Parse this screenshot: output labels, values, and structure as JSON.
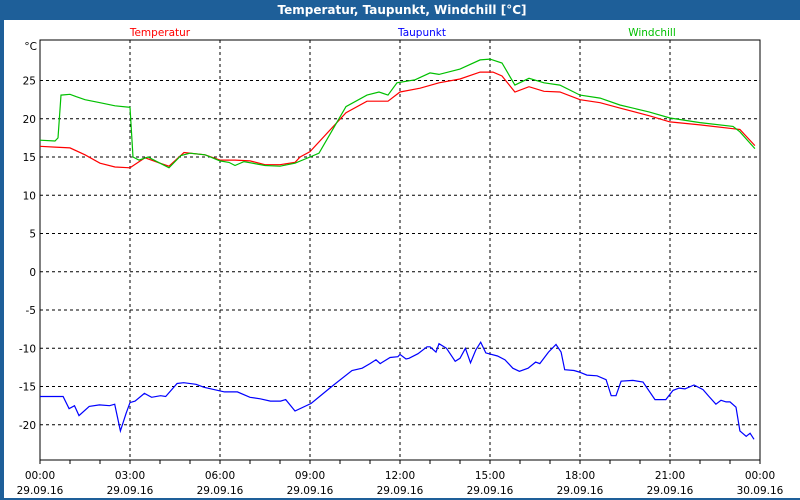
{
  "window": {
    "title": "Temperatur, Taupunkt, Windchill [°C]"
  },
  "chart_data": {
    "type": "line",
    "title": "Temperatur, Taupunkt, Windchill [°C]",
    "ylabel": "°C",
    "xlabel": "",
    "ylim": [
      -24.6,
      30.3
    ],
    "xlim_hours": [
      0,
      24
    ],
    "grid": true,
    "legend_placement": "top",
    "y_ticks": [
      25,
      20,
      15,
      10,
      5,
      0,
      -5,
      -10,
      -15,
      -20
    ],
    "x_ticks": [
      {
        "hour": 0,
        "time": "00:00",
        "date": "29.09.16"
      },
      {
        "hour": 3,
        "time": "03:00",
        "date": "29.09.16"
      },
      {
        "hour": 6,
        "time": "06:00",
        "date": "29.09.16"
      },
      {
        "hour": 9,
        "time": "09:00",
        "date": "29.09.16"
      },
      {
        "hour": 12,
        "time": "12:00",
        "date": "29.09.16"
      },
      {
        "hour": 15,
        "time": "15:00",
        "date": "29.09.16"
      },
      {
        "hour": 18,
        "time": "18:00",
        "date": "29.09.16"
      },
      {
        "hour": 21,
        "time": "21:00",
        "date": "29.09.16"
      },
      {
        "hour": 24,
        "time": "00:00",
        "date": "30.09.16"
      }
    ],
    "series": [
      {
        "name": "Temperatur",
        "color": "#ff0000",
        "x": [
          0,
          0.5,
          1,
          1.5,
          2,
          2.5,
          3,
          3.5,
          4,
          4.3,
          4.8,
          5.5,
          6,
          6.5,
          7,
          7.5,
          8,
          8.5,
          8.67,
          9,
          10.2,
          10.9,
          11.6,
          12,
          12.67,
          13.3,
          14,
          14.67,
          15.1,
          15.4,
          15.83,
          16.3,
          16.8,
          17.33,
          18,
          18.67,
          19.33,
          20.3,
          21,
          22,
          23.1,
          23.33,
          23.83
        ],
        "y": [
          16.4,
          16.3,
          16.2,
          15.3,
          14.2,
          13.7,
          13.6,
          14.9,
          14.2,
          13.8,
          15.6,
          15.3,
          14.6,
          14.6,
          14.5,
          14.0,
          14.0,
          14.3,
          15.0,
          15.7,
          20.8,
          22.3,
          22.3,
          23.5,
          24.0,
          24.7,
          25.2,
          26.1,
          26.1,
          25.6,
          23.5,
          24.2,
          23.6,
          23.5,
          22.5,
          22.1,
          21.4,
          20.4,
          19.6,
          19.2,
          18.7,
          18.6,
          16.5
        ]
      },
      {
        "name": "Taupunkt",
        "color": "#0000ff",
        "x": [
          0,
          0.77,
          0.97,
          1.15,
          1.3,
          1.64,
          1.98,
          2.32,
          2.49,
          2.68,
          2.87,
          3.0,
          3.17,
          3.48,
          3.72,
          4.02,
          4.19,
          4.57,
          4.79,
          5.2,
          5.47,
          6.15,
          6.58,
          7.0,
          7.34,
          7.68,
          8.02,
          8.19,
          8.5,
          9.04,
          9.72,
          10.4,
          10.74,
          11.0,
          11.2,
          11.34,
          11.67,
          11.93,
          12.0,
          12.2,
          12.3,
          12.6,
          12.9,
          13.0,
          13.2,
          13.3,
          13.55,
          13.84,
          14.0,
          14.18,
          14.35,
          14.53,
          14.69,
          14.86,
          15.25,
          15.5,
          15.76,
          15.98,
          16.27,
          16.52,
          16.66,
          16.95,
          17.2,
          17.37,
          17.49,
          17.8,
          17.97,
          18.23,
          18.57,
          18.87,
          19.04,
          19.2,
          19.37,
          19.76,
          20.1,
          20.5,
          20.86,
          21.1,
          21.3,
          21.5,
          21.8,
          22.1,
          22.3,
          22.53,
          22.7,
          22.87,
          23.0,
          23.2,
          23.33,
          23.54,
          23.67,
          23.8
        ],
        "y": [
          -16.3,
          -16.3,
          -17.9,
          -17.5,
          -18.8,
          -17.6,
          -17.4,
          -17.5,
          -17.3,
          -20.8,
          -18.5,
          -17.1,
          -16.9,
          -15.9,
          -16.4,
          -16.2,
          -16.3,
          -14.6,
          -14.5,
          -14.7,
          -15.1,
          -15.7,
          -15.7,
          -16.4,
          -16.6,
          -16.9,
          -16.9,
          -16.7,
          -18.2,
          -17.2,
          -15.0,
          -12.9,
          -12.6,
          -12.0,
          -11.5,
          -12.0,
          -11.2,
          -11.1,
          -10.8,
          -11.4,
          -11.3,
          -10.7,
          -9.8,
          -9.8,
          -10.5,
          -9.4,
          -10.0,
          -11.7,
          -11.3,
          -10.0,
          -11.9,
          -10.2,
          -9.2,
          -10.6,
          -11.0,
          -11.5,
          -12.6,
          -13.0,
          -12.6,
          -11.8,
          -12.0,
          -10.5,
          -9.5,
          -10.5,
          -12.8,
          -12.9,
          -13.1,
          -13.5,
          -13.6,
          -14.1,
          -16.2,
          -16.2,
          -14.3,
          -14.2,
          -14.4,
          -16.7,
          -16.7,
          -15.5,
          -15.2,
          -15.3,
          -14.8,
          -15.4,
          -16.3,
          -17.3,
          -16.8,
          -17.0,
          -17.0,
          -17.7,
          -20.8,
          -21.5,
          -21.1,
          -21.9
        ]
      },
      {
        "name": "Windchill",
        "color": "#00c000",
        "x": [
          0,
          0.5,
          0.6,
          0.7,
          1.0,
          1.2,
          1.5,
          2,
          2.5,
          3,
          3.1,
          3.3,
          3.6,
          4,
          4.3,
          4.7,
          5,
          5.5,
          6,
          6.3,
          6.5,
          6.8,
          7.5,
          8,
          8.5,
          9,
          9.3,
          10.2,
          10.9,
          11.3,
          11.6,
          11.9,
          12.5,
          13,
          13.3,
          14,
          14.67,
          15,
          15.4,
          15.83,
          16.3,
          16.8,
          17.33,
          18,
          18.67,
          19.33,
          20.3,
          21,
          22,
          23.1,
          23.33,
          23.83
        ],
        "y": [
          17.2,
          17.1,
          17.5,
          23.1,
          23.2,
          22.9,
          22.5,
          22.1,
          21.7,
          21.5,
          15.0,
          14.6,
          15.0,
          14.2,
          13.6,
          15.2,
          15.5,
          15.3,
          14.5,
          14.3,
          13.9,
          14.4,
          13.9,
          13.8,
          14.2,
          15.0,
          15.5,
          21.6,
          23.1,
          23.5,
          23.1,
          24.7,
          25.1,
          26.0,
          25.8,
          26.5,
          27.7,
          27.8,
          27.3,
          24.4,
          25.3,
          24.7,
          24.4,
          23.1,
          22.7,
          21.8,
          20.9,
          20.1,
          19.5,
          19.0,
          18.3,
          16.1
        ]
      }
    ]
  }
}
